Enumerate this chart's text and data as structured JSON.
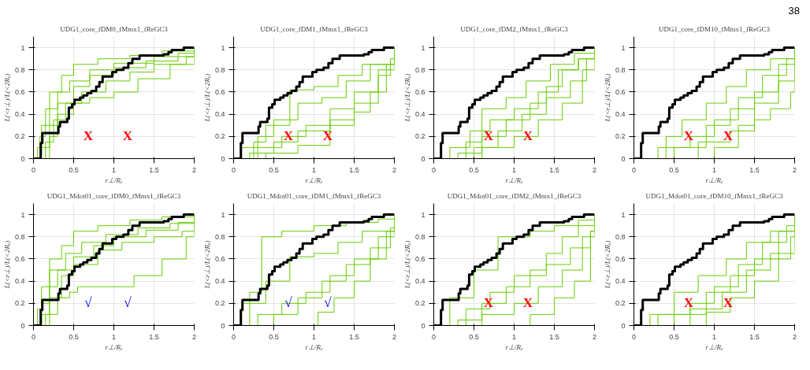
{
  "chart_data": [
    {
      "type": "step",
      "title": "UDG1_core_fDM0_fMmx1_fReGC3",
      "xlabel": "r⊥/Rₑ",
      "ylabel": "L(<r⊥)/L(<2Rₑ)",
      "xlim": [
        0,
        2
      ],
      "ylim": [
        0,
        1.1
      ],
      "xticks": [
        0,
        0.5,
        1,
        1.5,
        2
      ],
      "yticks": [
        0,
        0.2,
        0.4,
        0.6,
        0.8,
        1
      ],
      "grid": true,
      "annotations": [
        "X",
        "X"
      ],
      "series": [
        {
          "color": "#66cc00",
          "x": [
            0,
            0.05,
            0.1,
            0.2,
            0.35,
            0.5,
            0.8,
            1.2,
            1.6,
            2
          ],
          "values": [
            0,
            0.1,
            0.3,
            0.6,
            0.75,
            0.85,
            0.9,
            0.93,
            0.97,
            1
          ]
        },
        {
          "color": "#66cc00",
          "x": [
            0,
            0.1,
            0.2,
            0.3,
            0.5,
            0.7,
            1.0,
            1.4,
            1.8,
            2
          ],
          "values": [
            0,
            0.1,
            0.3,
            0.5,
            0.65,
            0.75,
            0.82,
            0.88,
            0.95,
            1
          ]
        },
        {
          "color": "#66cc00",
          "x": [
            0,
            0.15,
            0.25,
            0.4,
            0.6,
            0.9,
            1.2,
            1.5,
            1.9,
            2
          ],
          "values": [
            0,
            0.15,
            0.35,
            0.5,
            0.6,
            0.7,
            0.78,
            0.85,
            0.92,
            1
          ]
        },
        {
          "color": "#66cc00",
          "x": [
            0,
            0.2,
            0.3,
            0.5,
            0.7,
            1.0,
            1.3,
            1.7,
            2
          ],
          "values": [
            0,
            0.2,
            0.4,
            0.5,
            0.55,
            0.6,
            0.72,
            0.85,
            1
          ]
        },
        {
          "color": "#66cc00",
          "x": [
            0,
            0.08,
            0.15,
            0.3,
            0.45,
            0.7,
            1.0,
            1.5,
            2
          ],
          "values": [
            0,
            0.2,
            0.45,
            0.6,
            0.7,
            0.8,
            0.86,
            0.92,
            1
          ]
        },
        {
          "color": "#000000",
          "x": [
            0,
            0.09,
            0.11,
            0.31,
            0.33,
            0.42,
            0.44,
            0.48,
            0.51,
            0.58,
            0.62,
            0.67,
            0.72,
            0.78,
            0.82,
            0.86,
            0.98,
            1.03,
            1.12,
            1.18,
            1.23,
            1.32,
            1.62,
            1.68,
            1.72,
            1.87,
            2
          ],
          "values": [
            0,
            0.14,
            0.23,
            0.29,
            0.33,
            0.36,
            0.46,
            0.49,
            0.53,
            0.55,
            0.57,
            0.59,
            0.61,
            0.65,
            0.69,
            0.74,
            0.78,
            0.8,
            0.82,
            0.86,
            0.9,
            0.93,
            0.94,
            0.96,
            0.98,
            1,
            1
          ]
        }
      ]
    },
    {
      "type": "step",
      "title": "UDG1_core_fDM1_fMmx1_fReGC3",
      "xlabel": "r⊥/Rₑ",
      "ylabel": "L(<r⊥)/L(<2Rₑ)",
      "xlim": [
        0,
        2
      ],
      "ylim": [
        0,
        1.1
      ],
      "xticks": [
        0,
        0.5,
        1,
        1.5,
        2
      ],
      "yticks": [
        0,
        0.2,
        0.4,
        0.6,
        0.8,
        1
      ],
      "grid": true,
      "annotations": [
        "X",
        "X"
      ],
      "series": [
        {
          "color": "#66cc00",
          "x": [
            0,
            0.3,
            0.6,
            0.9,
            1.2,
            1.5,
            1.8,
            2
          ],
          "values": [
            0,
            0.1,
            0.2,
            0.3,
            0.45,
            0.6,
            0.8,
            1
          ]
        },
        {
          "color": "#66cc00",
          "x": [
            0,
            0.1,
            0.3,
            0.5,
            0.8,
            1.1,
            1.4,
            1.7,
            2
          ],
          "values": [
            0,
            0.1,
            0.2,
            0.35,
            0.5,
            0.55,
            0.7,
            0.85,
            1
          ]
        },
        {
          "color": "#66cc00",
          "x": [
            0,
            0.2,
            0.5,
            0.8,
            1.2,
            1.5,
            1.8,
            1.95,
            2
          ],
          "values": [
            0,
            0.05,
            0.15,
            0.25,
            0.35,
            0.5,
            0.75,
            0.9,
            1
          ]
        },
        {
          "color": "#66cc00",
          "x": [
            0,
            0.25,
            0.4,
            0.7,
            1.0,
            1.3,
            1.6,
            2
          ],
          "values": [
            0,
            0.15,
            0.3,
            0.62,
            0.65,
            0.75,
            0.85,
            1
          ]
        },
        {
          "color": "#66cc00",
          "x": [
            0,
            0.4,
            0.8,
            1.2,
            1.5,
            1.7,
            1.9,
            2
          ],
          "values": [
            0,
            0.05,
            0.12,
            0.3,
            0.42,
            0.6,
            0.85,
            1
          ]
        },
        {
          "color": "#000000",
          "x": [
            0,
            0.09,
            0.11,
            0.31,
            0.33,
            0.42,
            0.44,
            0.48,
            0.51,
            0.58,
            0.62,
            0.67,
            0.72,
            0.78,
            0.82,
            0.86,
            0.98,
            1.03,
            1.12,
            1.18,
            1.23,
            1.32,
            1.62,
            1.68,
            1.72,
            1.87,
            2
          ],
          "values": [
            0,
            0.14,
            0.23,
            0.29,
            0.33,
            0.36,
            0.46,
            0.49,
            0.53,
            0.55,
            0.57,
            0.59,
            0.61,
            0.65,
            0.69,
            0.74,
            0.78,
            0.8,
            0.82,
            0.86,
            0.9,
            0.93,
            0.94,
            0.96,
            0.98,
            1,
            1
          ]
        }
      ]
    },
    {
      "type": "step",
      "title": "UDG1_core_fDM2_fMmx1_fReGC3",
      "xlabel": "r⊥/Rₑ",
      "ylabel": "L(<r⊥)/L(<2Rₑ)",
      "xlim": [
        0,
        2
      ],
      "ylim": [
        0,
        1.1
      ],
      "xticks": [
        0,
        0.5,
        1,
        1.5,
        2
      ],
      "yticks": [
        0,
        0.2,
        0.4,
        0.6,
        0.8,
        1
      ],
      "grid": true,
      "annotations": [
        "X",
        "X"
      ],
      "series": [
        {
          "color": "#66cc00",
          "x": [
            0,
            0.3,
            0.6,
            0.9,
            1.2,
            1.4,
            1.6,
            1.8,
            2
          ],
          "values": [
            0,
            0.05,
            0.2,
            0.35,
            0.5,
            0.65,
            0.8,
            0.9,
            1
          ]
        },
        {
          "color": "#66cc00",
          "x": [
            0,
            0.5,
            0.8,
            1.1,
            1.4,
            1.7,
            1.9,
            2
          ],
          "values": [
            0,
            0.1,
            0.25,
            0.4,
            0.55,
            0.7,
            0.9,
            1
          ]
        },
        {
          "color": "#66cc00",
          "x": [
            0,
            0.2,
            0.45,
            0.7,
            1.0,
            1.3,
            1.55,
            1.8,
            2
          ],
          "values": [
            0,
            0.1,
            0.25,
            0.35,
            0.45,
            0.6,
            0.8,
            0.9,
            1
          ]
        },
        {
          "color": "#66cc00",
          "x": [
            0,
            0.6,
            1.0,
            1.3,
            1.6,
            1.85,
            2
          ],
          "values": [
            0,
            0.1,
            0.2,
            0.35,
            0.5,
            0.8,
            1
          ]
        },
        {
          "color": "#66cc00",
          "x": [
            0,
            0.4,
            0.6,
            0.9,
            1.15,
            1.45,
            1.75,
            2
          ],
          "values": [
            0,
            0.15,
            0.45,
            0.55,
            0.7,
            0.85,
            0.95,
            1
          ]
        },
        {
          "color": "#000000",
          "x": [
            0,
            0.09,
            0.11,
            0.31,
            0.33,
            0.42,
            0.44,
            0.48,
            0.51,
            0.58,
            0.62,
            0.67,
            0.72,
            0.78,
            0.82,
            0.86,
            0.98,
            1.03,
            1.12,
            1.18,
            1.23,
            1.32,
            1.62,
            1.68,
            1.72,
            1.87,
            2
          ],
          "values": [
            0,
            0.14,
            0.23,
            0.29,
            0.33,
            0.36,
            0.46,
            0.49,
            0.53,
            0.55,
            0.57,
            0.59,
            0.61,
            0.65,
            0.69,
            0.74,
            0.78,
            0.8,
            0.82,
            0.86,
            0.9,
            0.93,
            0.94,
            0.96,
            0.98,
            1,
            1
          ]
        }
      ]
    },
    {
      "type": "step",
      "title": "UDG1_core_fDM10_fMmx1_fReGC3",
      "xlabel": "r⊥/Rₑ",
      "ylabel": "L(<r⊥)/L(<2Rₑ)",
      "xlim": [
        0,
        2
      ],
      "ylim": [
        0,
        1.1
      ],
      "xticks": [
        0,
        0.5,
        1,
        1.5,
        2
      ],
      "yticks": [
        0,
        0.2,
        0.4,
        0.6,
        0.8,
        1
      ],
      "grid": true,
      "annotations": [
        {
          "text": "38"
        },
        "X",
        "X"
      ],
      "series": [
        {
          "color": "#66cc00",
          "x": [
            0,
            0.5,
            0.9,
            1.2,
            1.5,
            1.8,
            2
          ],
          "values": [
            0,
            0.1,
            0.3,
            0.45,
            0.6,
            0.85,
            1
          ]
        },
        {
          "color": "#66cc00",
          "x": [
            0,
            0.3,
            0.7,
            1.0,
            1.3,
            1.6,
            1.9,
            2
          ],
          "values": [
            0,
            0.1,
            0.2,
            0.35,
            0.55,
            0.75,
            0.9,
            1
          ]
        },
        {
          "color": "#66cc00",
          "x": [
            0,
            0.8,
            1.2,
            1.5,
            1.7,
            1.95,
            2
          ],
          "values": [
            0,
            0.15,
            0.25,
            0.35,
            0.45,
            0.6,
            1
          ]
        },
        {
          "color": "#66cc00",
          "x": [
            0,
            0.4,
            0.6,
            0.9,
            1.15,
            1.4,
            1.7,
            2
          ],
          "values": [
            0,
            0.2,
            0.35,
            0.5,
            0.65,
            0.8,
            0.9,
            1
          ]
        },
        {
          "color": "#66cc00",
          "x": [
            0,
            1.0,
            1.3,
            1.5,
            1.8,
            2
          ],
          "values": [
            0,
            0.1,
            0.3,
            0.5,
            0.7,
            1
          ]
        },
        {
          "color": "#000000",
          "x": [
            0,
            0.09,
            0.11,
            0.31,
            0.33,
            0.42,
            0.44,
            0.48,
            0.51,
            0.58,
            0.62,
            0.67,
            0.72,
            0.78,
            0.82,
            0.86,
            0.98,
            1.03,
            1.12,
            1.18,
            1.23,
            1.32,
            1.62,
            1.68,
            1.72,
            1.87,
            2
          ],
          "values": [
            0,
            0.14,
            0.23,
            0.29,
            0.33,
            0.36,
            0.46,
            0.49,
            0.53,
            0.55,
            0.57,
            0.59,
            0.61,
            0.65,
            0.69,
            0.74,
            0.78,
            0.8,
            0.82,
            0.86,
            0.9,
            0.93,
            0.94,
            0.96,
            0.98,
            1,
            1
          ]
        }
      ]
    },
    {
      "type": "step",
      "title": "UDG1_Mdot01_core_fDM0_fMmx1_fReGC3",
      "xlabel": "r⊥/Rₑ",
      "ylabel": "L(<r⊥)/L(<2Rₑ)",
      "xlim": [
        0,
        2
      ],
      "ylim": [
        0,
        1.1
      ],
      "xticks": [
        0,
        0.5,
        1,
        1.5,
        2
      ],
      "yticks": [
        0,
        0.2,
        0.4,
        0.6,
        0.8,
        1
      ],
      "grid": true,
      "annotations": [
        "√",
        "√"
      ],
      "series": [
        {
          "color": "#66cc00",
          "x": [
            0,
            0.05,
            0.1,
            0.2,
            0.35,
            0.5,
            0.8,
            1.2,
            1.6,
            2
          ],
          "values": [
            0,
            0.15,
            0.35,
            0.6,
            0.72,
            0.85,
            0.9,
            0.95,
            0.98,
            1
          ]
        },
        {
          "color": "#66cc00",
          "x": [
            0,
            0.1,
            0.2,
            0.3,
            0.5,
            0.75,
            1.0,
            1.4,
            1.8,
            2
          ],
          "values": [
            0,
            0.1,
            0.35,
            0.5,
            0.62,
            0.72,
            0.8,
            0.86,
            0.93,
            1
          ]
        },
        {
          "color": "#66cc00",
          "x": [
            0,
            0.15,
            0.3,
            0.45,
            0.55,
            1.25,
            1.6,
            1.9,
            2
          ],
          "values": [
            0,
            0.1,
            0.25,
            0.3,
            0.35,
            0.45,
            0.6,
            0.8,
            1
          ]
        },
        {
          "color": "#66cc00",
          "x": [
            0,
            0.1,
            0.2,
            0.4,
            0.6,
            0.9,
            1.3,
            1.7,
            2
          ],
          "values": [
            0,
            0.2,
            0.5,
            0.65,
            0.75,
            0.82,
            0.88,
            0.92,
            1
          ]
        },
        {
          "color": "#66cc00",
          "x": [
            0,
            0.2,
            0.35,
            0.5,
            0.8,
            1.1,
            1.5,
            1.85,
            2
          ],
          "values": [
            0,
            0.25,
            0.45,
            0.55,
            0.68,
            0.75,
            0.8,
            0.85,
            1
          ]
        },
        {
          "color": "#000000",
          "x": [
            0,
            0.09,
            0.11,
            0.31,
            0.33,
            0.42,
            0.44,
            0.48,
            0.51,
            0.58,
            0.62,
            0.67,
            0.72,
            0.78,
            0.82,
            0.86,
            0.98,
            1.03,
            1.12,
            1.18,
            1.23,
            1.32,
            1.62,
            1.68,
            1.72,
            1.87,
            2
          ],
          "values": [
            0,
            0.14,
            0.23,
            0.29,
            0.33,
            0.36,
            0.46,
            0.49,
            0.53,
            0.55,
            0.57,
            0.59,
            0.61,
            0.65,
            0.69,
            0.74,
            0.78,
            0.8,
            0.82,
            0.86,
            0.9,
            0.93,
            0.94,
            0.96,
            0.98,
            1,
            1
          ]
        }
      ]
    },
    {
      "type": "step",
      "title": "UDG1_Mdot01_core_fDM1_fMmx1_fReGC3",
      "xlabel": "r⊥/Rₑ",
      "ylabel": "L(<r⊥)/L(<2Rₑ)",
      "xlim": [
        0,
        2
      ],
      "ylim": [
        0,
        1.1
      ],
      "xticks": [
        0,
        0.5,
        1,
        1.5,
        2
      ],
      "yticks": [
        0,
        0.2,
        0.4,
        0.6,
        0.8,
        1
      ],
      "grid": true,
      "annotations": [
        "√",
        "√"
      ],
      "series": [
        {
          "color": "#66cc00",
          "x": [
            0,
            0.2,
            0.35,
            0.6,
            1.0,
            1.4,
            1.8,
            2
          ],
          "values": [
            0,
            0.3,
            0.8,
            0.85,
            0.9,
            0.93,
            0.96,
            1
          ]
        },
        {
          "color": "#66cc00",
          "x": [
            0,
            0.3,
            0.6,
            0.9,
            1.2,
            1.5,
            1.8,
            2
          ],
          "values": [
            0,
            0.1,
            0.2,
            0.3,
            0.45,
            0.6,
            0.8,
            1
          ]
        },
        {
          "color": "#66cc00",
          "x": [
            0,
            0.1,
            0.4,
            0.7,
            1.0,
            1.3,
            1.6,
            2
          ],
          "values": [
            0,
            0.2,
            0.4,
            0.62,
            0.65,
            0.75,
            0.85,
            1
          ]
        },
        {
          "color": "#66cc00",
          "x": [
            0,
            1.05,
            1.25,
            1.5,
            1.7,
            1.9,
            2
          ],
          "values": [
            0,
            0.12,
            0.25,
            0.4,
            0.6,
            0.85,
            1
          ]
        },
        {
          "color": "#66cc00",
          "x": [
            0,
            0.5,
            0.8,
            1.1,
            1.4,
            1.7,
            1.95,
            2
          ],
          "values": [
            0,
            0.1,
            0.25,
            0.4,
            0.55,
            0.7,
            0.88,
            1
          ]
        },
        {
          "color": "#000000",
          "x": [
            0,
            0.09,
            0.11,
            0.31,
            0.33,
            0.42,
            0.44,
            0.48,
            0.51,
            0.58,
            0.62,
            0.67,
            0.72,
            0.78,
            0.82,
            0.86,
            0.98,
            1.03,
            1.12,
            1.18,
            1.23,
            1.32,
            1.62,
            1.68,
            1.72,
            1.87,
            2
          ],
          "values": [
            0,
            0.14,
            0.23,
            0.29,
            0.33,
            0.36,
            0.46,
            0.49,
            0.53,
            0.55,
            0.57,
            0.59,
            0.61,
            0.65,
            0.69,
            0.74,
            0.78,
            0.8,
            0.82,
            0.86,
            0.9,
            0.93,
            0.94,
            0.96,
            0.98,
            1,
            1
          ]
        }
      ]
    },
    {
      "type": "step",
      "title": "UDG1_Mdot01_core_fDM2_fMmx1_fReGC3",
      "xlabel": "r⊥/Rₑ",
      "ylabel": "L(<r⊥)/L(<2Rₑ)",
      "xlim": [
        0,
        2
      ],
      "ylim": [
        0,
        1.1
      ],
      "xticks": [
        0,
        0.5,
        1,
        1.5,
        2
      ],
      "yticks": [
        0,
        0.2,
        0.4,
        0.6,
        0.8,
        1
      ],
      "grid": true,
      "annotations": [
        "X",
        "X"
      ],
      "series": [
        {
          "color": "#66cc00",
          "x": [
            0,
            0.2,
            0.5,
            0.8,
            1.2,
            1.5,
            1.8,
            2
          ],
          "values": [
            0,
            0.25,
            0.5,
            0.8,
            0.85,
            0.9,
            0.95,
            1
          ]
        },
        {
          "color": "#66cc00",
          "x": [
            0,
            0.3,
            0.6,
            0.9,
            1.2,
            1.4,
            1.6,
            1.8,
            2
          ],
          "values": [
            0,
            0.05,
            0.2,
            0.35,
            0.5,
            0.65,
            0.8,
            0.9,
            1
          ]
        },
        {
          "color": "#66cc00",
          "x": [
            0,
            0.6,
            1.0,
            1.3,
            1.6,
            1.85,
            2
          ],
          "values": [
            0,
            0.1,
            0.2,
            0.35,
            0.5,
            0.8,
            1
          ]
        },
        {
          "color": "#66cc00",
          "x": [
            0,
            0.4,
            0.7,
            1.0,
            1.4,
            1.7,
            1.95,
            2
          ],
          "values": [
            0,
            0.15,
            0.3,
            0.45,
            0.55,
            0.7,
            0.85,
            1
          ]
        },
        {
          "color": "#66cc00",
          "x": [
            0,
            1.2,
            1.5,
            1.75,
            1.95,
            2
          ],
          "values": [
            0,
            0.1,
            0.25,
            0.4,
            0.85,
            1
          ]
        },
        {
          "color": "#000000",
          "x": [
            0,
            0.09,
            0.11,
            0.31,
            0.33,
            0.42,
            0.44,
            0.48,
            0.51,
            0.58,
            0.62,
            0.67,
            0.72,
            0.78,
            0.82,
            0.86,
            0.98,
            1.03,
            1.12,
            1.18,
            1.23,
            1.32,
            1.62,
            1.68,
            1.72,
            1.87,
            2
          ],
          "values": [
            0,
            0.14,
            0.23,
            0.29,
            0.33,
            0.36,
            0.46,
            0.49,
            0.53,
            0.55,
            0.57,
            0.59,
            0.61,
            0.65,
            0.69,
            0.74,
            0.78,
            0.8,
            0.82,
            0.86,
            0.9,
            0.93,
            0.94,
            0.96,
            0.98,
            1,
            1
          ]
        }
      ]
    },
    {
      "type": "step",
      "title": "UDG1_Mdot01_core_fDM10_fMmx1_fReGC3",
      "xlabel": "r⊥/Rₑ",
      "ylabel": "L(<r⊥)/L(<2Rₑ)",
      "xlim": [
        0,
        2
      ],
      "ylim": [
        0,
        1.1
      ],
      "xticks": [
        0,
        0.5,
        1,
        1.5,
        2
      ],
      "yticks": [
        0,
        0.2,
        0.4,
        0.6,
        0.8,
        1
      ],
      "grid": true,
      "annotations": [
        "X",
        "X"
      ],
      "series": [
        {
          "color": "#66cc00",
          "x": [
            0,
            0.3,
            0.7,
            1.0,
            1.3,
            1.6,
            1.9,
            2
          ],
          "values": [
            0,
            0.1,
            0.2,
            0.35,
            0.55,
            0.75,
            0.9,
            1
          ]
        },
        {
          "color": "#66cc00",
          "x": [
            0,
            0.5,
            0.9,
            1.2,
            1.5,
            1.8,
            2
          ],
          "values": [
            0,
            0.1,
            0.3,
            0.45,
            0.6,
            0.85,
            1
          ]
        },
        {
          "color": "#66cc00",
          "x": [
            0,
            0.2,
            0.5,
            0.8,
            1.15,
            1.4,
            1.7,
            2
          ],
          "values": [
            0,
            0.1,
            0.3,
            0.45,
            0.6,
            0.75,
            0.85,
            1
          ]
        },
        {
          "color": "#66cc00",
          "x": [
            0,
            0.9,
            1.2,
            1.5,
            1.8,
            1.95,
            2
          ],
          "values": [
            0,
            0.12,
            0.25,
            0.4,
            0.6,
            0.8,
            1
          ]
        },
        {
          "color": "#66cc00",
          "x": [
            0,
            0.7,
            1.1,
            1.4,
            1.7,
            2
          ],
          "values": [
            0,
            0.15,
            0.3,
            0.5,
            0.65,
            1
          ]
        },
        {
          "color": "#000000",
          "x": [
            0,
            0.09,
            0.11,
            0.31,
            0.33,
            0.42,
            0.44,
            0.48,
            0.51,
            0.58,
            0.62,
            0.67,
            0.72,
            0.78,
            0.82,
            0.86,
            0.98,
            1.03,
            1.12,
            1.18,
            1.23,
            1.32,
            1.62,
            1.68,
            1.72,
            1.87,
            2
          ],
          "values": [
            0,
            0.14,
            0.23,
            0.29,
            0.33,
            0.36,
            0.46,
            0.49,
            0.53,
            0.55,
            0.57,
            0.59,
            0.61,
            0.65,
            0.69,
            0.74,
            0.78,
            0.8,
            0.82,
            0.86,
            0.9,
            0.93,
            0.94,
            0.96,
            0.98,
            1,
            1
          ]
        }
      ]
    }
  ]
}
